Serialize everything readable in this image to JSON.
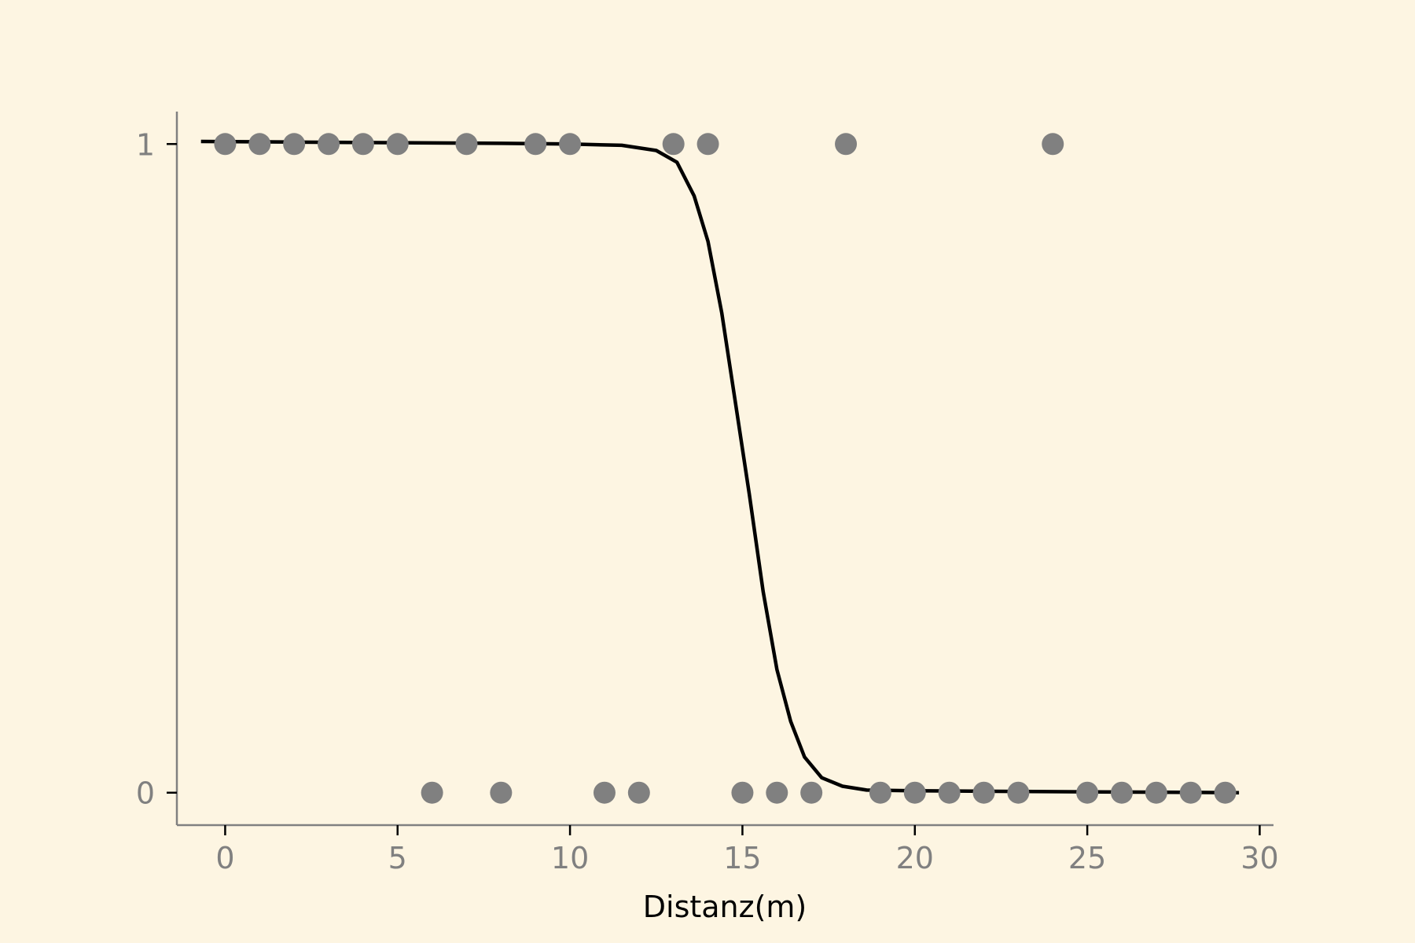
{
  "colors": {
    "background": "#fdf5e2",
    "axis": "#808080",
    "points": "#808080",
    "curve": "#000000",
    "xlabel": "#000000"
  },
  "chart_data": {
    "type": "scatter",
    "title": "",
    "xlabel": "Distanz(m)",
    "ylabel": "",
    "xlim": [
      -1.4,
      30.4
    ],
    "ylim": [
      -0.05,
      1.05
    ],
    "x_ticks": [
      0,
      5,
      10,
      15,
      20,
      25,
      30
    ],
    "y_ticks": [
      0,
      1
    ],
    "grid": false,
    "legend": "none",
    "series": [
      {
        "type": "scatter",
        "points": [
          {
            "x": 0,
            "y": 1
          },
          {
            "x": 1,
            "y": 1
          },
          {
            "x": 2,
            "y": 1
          },
          {
            "x": 3,
            "y": 1
          },
          {
            "x": 4,
            "y": 1
          },
          {
            "x": 5,
            "y": 1
          },
          {
            "x": 6,
            "y": 0
          },
          {
            "x": 7,
            "y": 1
          },
          {
            "x": 8,
            "y": 0
          },
          {
            "x": 9,
            "y": 1
          },
          {
            "x": 10,
            "y": 1
          },
          {
            "x": 11,
            "y": 0
          },
          {
            "x": 12,
            "y": 0
          },
          {
            "x": 13,
            "y": 1
          },
          {
            "x": 14,
            "y": 1
          },
          {
            "x": 15,
            "y": 0
          },
          {
            "x": 16,
            "y": 0
          },
          {
            "x": 17,
            "y": 0
          },
          {
            "x": 18,
            "y": 1
          },
          {
            "x": 19,
            "y": 0
          },
          {
            "x": 20,
            "y": 0
          },
          {
            "x": 21,
            "y": 0
          },
          {
            "x": 22,
            "y": 0
          },
          {
            "x": 23,
            "y": 0
          },
          {
            "x": 24,
            "y": 1
          },
          {
            "x": 25,
            "y": 0
          },
          {
            "x": 26,
            "y": 0
          },
          {
            "x": 27,
            "y": 0
          },
          {
            "x": 28,
            "y": 0
          },
          {
            "x": 29,
            "y": 0
          }
        ]
      },
      {
        "type": "line",
        "points": [
          {
            "x": -0.7,
            "y": 1.004
          },
          {
            "x": 2,
            "y": 1.003
          },
          {
            "x": 5,
            "y": 1.002
          },
          {
            "x": 8,
            "y": 1.001
          },
          {
            "x": 10,
            "y": 1.0
          },
          {
            "x": 11.5,
            "y": 0.998
          },
          {
            "x": 12.5,
            "y": 0.99
          },
          {
            "x": 13.1,
            "y": 0.972
          },
          {
            "x": 13.6,
            "y": 0.92
          },
          {
            "x": 14.0,
            "y": 0.85
          },
          {
            "x": 14.4,
            "y": 0.74
          },
          {
            "x": 14.8,
            "y": 0.6
          },
          {
            "x": 15.2,
            "y": 0.46
          },
          {
            "x": 15.6,
            "y": 0.31
          },
          {
            "x": 16.0,
            "y": 0.19
          },
          {
            "x": 16.4,
            "y": 0.11
          },
          {
            "x": 16.8,
            "y": 0.055
          },
          {
            "x": 17.3,
            "y": 0.023
          },
          {
            "x": 17.9,
            "y": 0.01
          },
          {
            "x": 18.6,
            "y": 0.004
          },
          {
            "x": 20,
            "y": 0.003
          },
          {
            "x": 23,
            "y": 0.002
          },
          {
            "x": 26,
            "y": 0.001
          },
          {
            "x": 29.4,
            "y": 0.0
          }
        ]
      }
    ]
  }
}
